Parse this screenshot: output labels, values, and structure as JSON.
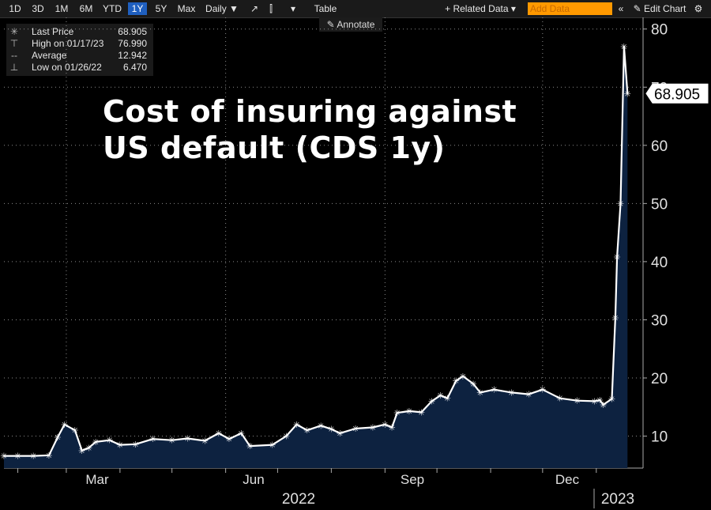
{
  "toolbar": {
    "periods": [
      "1D",
      "3D",
      "1M",
      "6M",
      "YTD",
      "1Y",
      "5Y",
      "Max"
    ],
    "active_period": "1Y",
    "frequency": "Daily ▼",
    "table_label": "Table",
    "related_data": "+ Related Data ▾",
    "add_data_placeholder": "Add Data",
    "collapse": "«",
    "edit_chart": "✎ Edit Chart",
    "settings_icon": "gear-icon"
  },
  "annotate_label": "✎ Annotate",
  "legend": [
    {
      "icon": "✳",
      "label": "Last Price",
      "value": "68.905"
    },
    {
      "icon": "⊤",
      "label": "High on 01/17/23",
      "value": "76.990"
    },
    {
      "icon": "--",
      "label": "Average",
      "value": "12.942"
    },
    {
      "icon": "⊥",
      "label": "Low on 01/26/22",
      "value": "6.470"
    }
  ],
  "chart_data": {
    "type": "area",
    "title_lines": [
      "Cost of insuring against",
      "US default (CDS 1y)"
    ],
    "last_value_label": "68.905",
    "x_tick_labels": [
      "Mar",
      "Jun",
      "Sep",
      "Dec"
    ],
    "x_years": [
      "2022",
      "2023"
    ],
    "ylim": [
      4.5,
      82
    ],
    "yticks": [
      10,
      20,
      30,
      40,
      50,
      60,
      70,
      80
    ],
    "grid": true,
    "line_color": "#ffffff",
    "fill_color": "#0d2240",
    "x_range": [
      "2022-01-24",
      "2023-01-28"
    ],
    "points": [
      [
        "2022-01-24",
        6.6
      ],
      [
        "2022-02-01",
        6.6
      ],
      [
        "2022-02-10",
        6.6
      ],
      [
        "2022-02-19",
        6.7
      ],
      [
        "2022-02-24",
        9.8
      ],
      [
        "2022-02-28",
        12.0
      ],
      [
        "2022-03-06",
        11.0
      ],
      [
        "2022-03-10",
        7.5
      ],
      [
        "2022-03-14",
        8.0
      ],
      [
        "2022-03-18",
        9.0
      ],
      [
        "2022-03-26",
        9.3
      ],
      [
        "2022-04-01",
        8.5
      ],
      [
        "2022-04-10",
        8.6
      ],
      [
        "2022-04-20",
        9.5
      ],
      [
        "2022-05-01",
        9.3
      ],
      [
        "2022-05-10",
        9.6
      ],
      [
        "2022-05-20",
        9.2
      ],
      [
        "2022-05-28",
        10.5
      ],
      [
        "2022-06-03",
        9.5
      ],
      [
        "2022-06-10",
        10.5
      ],
      [
        "2022-06-15",
        8.3
      ],
      [
        "2022-06-28",
        8.5
      ],
      [
        "2022-07-06",
        10.0
      ],
      [
        "2022-07-12",
        12.0
      ],
      [
        "2022-07-18",
        11.0
      ],
      [
        "2022-07-26",
        11.8
      ],
      [
        "2022-08-01",
        11.2
      ],
      [
        "2022-08-06",
        10.5
      ],
      [
        "2022-08-15",
        11.3
      ],
      [
        "2022-08-25",
        11.5
      ],
      [
        "2022-09-01",
        12.0
      ],
      [
        "2022-09-05",
        11.5
      ],
      [
        "2022-09-08",
        14.0
      ],
      [
        "2022-09-15",
        14.3
      ],
      [
        "2022-09-22",
        14.1
      ],
      [
        "2022-09-28",
        16.0
      ],
      [
        "2022-10-03",
        17.0
      ],
      [
        "2022-10-07",
        16.5
      ],
      [
        "2022-10-12",
        19.5
      ],
      [
        "2022-10-16",
        20.3
      ],
      [
        "2022-10-22",
        19.0
      ],
      [
        "2022-10-26",
        17.5
      ],
      [
        "2022-11-03",
        18.0
      ],
      [
        "2022-11-13",
        17.5
      ],
      [
        "2022-11-23",
        17.2
      ],
      [
        "2022-12-01",
        18.0
      ],
      [
        "2022-12-11",
        16.5
      ],
      [
        "2022-12-21",
        16.1
      ],
      [
        "2022-12-31",
        16.0
      ],
      [
        "2023-01-03",
        16.2
      ],
      [
        "2023-01-05",
        15.4
      ],
      [
        "2023-01-10",
        16.4
      ],
      [
        "2023-01-12",
        30.3
      ],
      [
        "2023-01-13",
        40.8
      ],
      [
        "2023-01-15",
        50.0
      ],
      [
        "2023-01-17",
        76.99
      ],
      [
        "2023-01-19",
        68.905
      ]
    ]
  }
}
